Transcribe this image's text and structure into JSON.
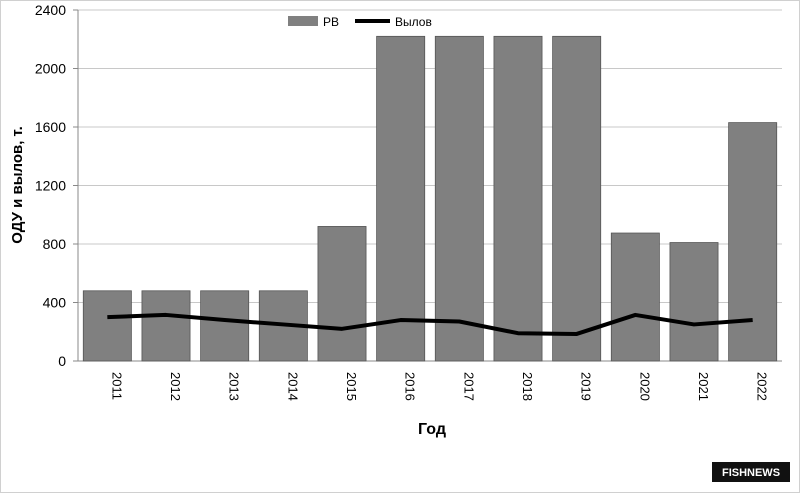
{
  "chart_data": {
    "type": "bar_line",
    "x_label": "Год",
    "y_label": "ОДУ и вылов, т.",
    "categories": [
      "2011",
      "2012",
      "2013",
      "2014",
      "2015",
      "2016",
      "2017",
      "2018",
      "2019",
      "2020",
      "2021",
      "2022"
    ],
    "series": [
      {
        "name": "РВ",
        "type": "bar",
        "color": "#808080",
        "values": [
          480,
          480,
          480,
          480,
          920,
          2220,
          2220,
          2220,
          2220,
          875,
          810,
          1630
        ]
      },
      {
        "name": "Вылов",
        "type": "line",
        "color": "#000000",
        "values": [
          300,
          315,
          280,
          250,
          220,
          280,
          270,
          190,
          185,
          315,
          250,
          280
        ]
      }
    ],
    "ylim": [
      0,
      2400
    ],
    "yticks": [
      0,
      400,
      800,
      1200,
      1600,
      2000,
      2400
    ],
    "grid": true
  },
  "watermark": "FISHNEWS"
}
